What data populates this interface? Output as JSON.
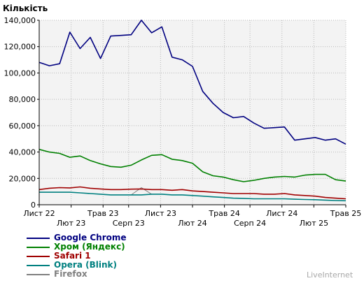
{
  "chart_data": {
    "type": "line",
    "ylabel": "Кількість",
    "ylim": [
      0,
      140000
    ],
    "yticks": [
      0,
      20000,
      40000,
      60000,
      80000,
      100000,
      120000,
      140000
    ],
    "ytick_labels": [
      "0",
      "20,000",
      "40,000",
      "60,000",
      "80,000",
      "100,000",
      "120,000",
      "140,000"
    ],
    "xlim": [
      0,
      48
    ],
    "xticks": [
      {
        "x": 0,
        "label": "Лист 22",
        "row": 0
      },
      {
        "x": 5,
        "label": "Лют 23",
        "row": 1
      },
      {
        "x": 10,
        "label": "Трав 23",
        "row": 0
      },
      {
        "x": 14,
        "label": "Серп 23",
        "row": 1
      },
      {
        "x": 19,
        "label": "Лист 23",
        "row": 0
      },
      {
        "x": 24,
        "label": "Лют 24",
        "row": 1
      },
      {
        "x": 29,
        "label": "Трав 24",
        "row": 0
      },
      {
        "x": 33,
        "label": "Серп 24",
        "row": 1
      },
      {
        "x": 38,
        "label": "Лист 24",
        "row": 0
      },
      {
        "x": 43,
        "label": "Лют 25",
        "row": 1
      },
      {
        "x": 48,
        "label": "Трав 25",
        "row": 0
      }
    ],
    "grid": true,
    "legend_position": "bottom-left",
    "series": [
      {
        "name": "Google Chrome",
        "color": "#000080",
        "values": [
          108000,
          105500,
          107000,
          131000,
          118500,
          127000,
          111000,
          128000,
          128500,
          129000,
          140000,
          130500,
          135000,
          112000,
          110000,
          105000,
          86000,
          77000,
          70000,
          66000,
          67000,
          62000,
          58000,
          58500,
          59000,
          49000,
          50000,
          51000,
          49000,
          50000,
          46000
        ]
      },
      {
        "name": "Хром (Яндекс)",
        "color": "#008000",
        "values": [
          42000,
          40000,
          39000,
          36000,
          37000,
          33500,
          31000,
          29000,
          28500,
          30000,
          34000,
          37500,
          38000,
          34500,
          33500,
          31500,
          25000,
          22000,
          21000,
          19000,
          17500,
          18500,
          20000,
          21000,
          21500,
          21000,
          22500,
          23000,
          23000,
          19000,
          18000
        ]
      },
      {
        "name": "Safari 1",
        "color": "#a00000",
        "values": [
          11500,
          12500,
          13000,
          12800,
          13500,
          12500,
          12000,
          11500,
          11500,
          11800,
          12000,
          11500,
          11500,
          11000,
          11500,
          10500,
          10000,
          9500,
          9000,
          8500,
          8500,
          8500,
          8000,
          8000,
          8500,
          7500,
          7000,
          6500,
          5500,
          5000,
          4500
        ]
      },
      {
        "name": "Opera (Blink)",
        "color": "#008080",
        "values": [
          9500,
          9500,
          9500,
          9500,
          9000,
          8500,
          8000,
          7500,
          7500,
          7500,
          7500,
          8000,
          8000,
          7500,
          7500,
          7000,
          6500,
          6000,
          5500,
          5000,
          4800,
          4500,
          4500,
          4500,
          4500,
          4200,
          4000,
          3800,
          3500,
          3200,
          3000
        ]
      },
      {
        "name": "Firefox",
        "color": "#808080",
        "values": [
          null,
          null,
          null,
          null,
          null,
          null,
          null,
          null,
          null,
          7500,
          13000,
          8000,
          null,
          null,
          null,
          null,
          null,
          null,
          null,
          null,
          null,
          null,
          null,
          null,
          null,
          null,
          null,
          null,
          null,
          null,
          null
        ]
      }
    ]
  },
  "brand": "LiveInternet"
}
